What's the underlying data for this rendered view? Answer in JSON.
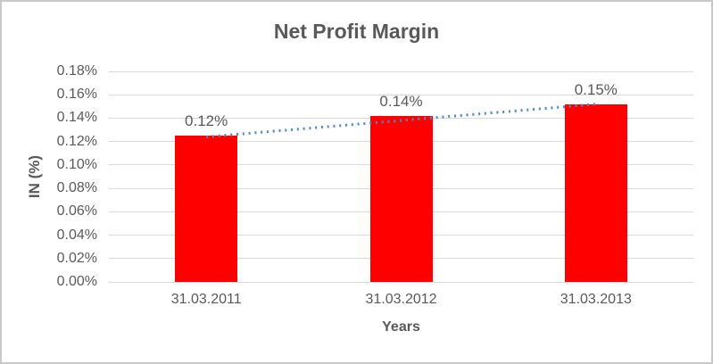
{
  "chart_data": {
    "type": "bar",
    "title": "Net Profit Margin",
    "categories": [
      "31.03.2011",
      "31.03.2012",
      "31.03.2013"
    ],
    "series": [
      {
        "name": "Net Profit Margin",
        "values": [
          0.125,
          0.142,
          0.152
        ],
        "data_labels": [
          "0.12%",
          "0.14%",
          "0.15%"
        ],
        "color": "#FF0000"
      }
    ],
    "units": "%",
    "xlabel": "Years",
    "ylabel": "IN (%)",
    "ylim": [
      0,
      0.18
    ],
    "ytick_step": 0.02,
    "ytick_labels": [
      "0.00%",
      "0.02%",
      "0.04%",
      "0.06%",
      "0.08%",
      "0.10%",
      "0.12%",
      "0.14%",
      "0.16%",
      "0.18%"
    ],
    "grid": true,
    "legend": "none",
    "trendline": {
      "type": "linear",
      "style": "dotted",
      "color": "#4A89D0",
      "start_value": 0.124,
      "end_value": 0.152
    }
  },
  "colors": {
    "bar": "#FF0000",
    "trendline": "#4A89D0",
    "text": "#595959",
    "gridline": "#D9D9D9",
    "axis_line": "#D9D9D9",
    "border": "#C9C9C9",
    "background": "#FFFFFF"
  }
}
